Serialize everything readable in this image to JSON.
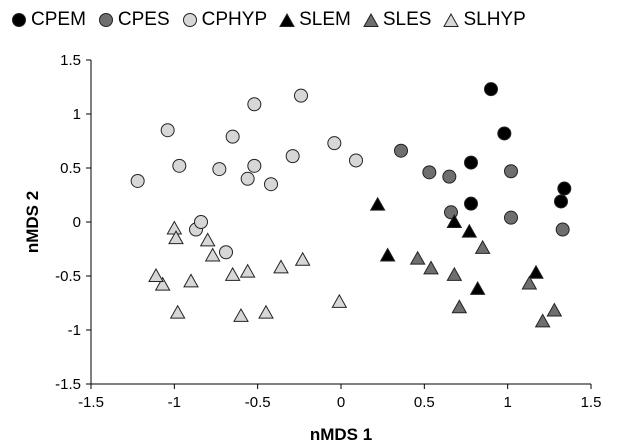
{
  "chart_data": {
    "type": "scatter",
    "title": "",
    "xlabel": "nMDS 1",
    "ylabel": "nMDS 2",
    "xlim": [
      -1.5,
      1.5
    ],
    "ylim": [
      -1.5,
      1.5
    ],
    "xticks": [
      -1.5,
      -1,
      -0.5,
      0,
      0.5,
      1,
      1.5
    ],
    "xtick_labels": [
      "-1.5",
      "-1",
      "-0.5",
      "0",
      "0.5",
      "1",
      "1.5"
    ],
    "yticks": [
      -1.5,
      -1,
      -0.5,
      0,
      0.5,
      1,
      1.5
    ],
    "ytick_labels": [
      "-1.5",
      "-1",
      "-0.5",
      "0",
      "0.5",
      "1",
      "1.5"
    ],
    "grid": false,
    "legend_position": "top",
    "series": [
      {
        "name": "CPEM",
        "marker": "circle",
        "color": "#000000",
        "points": [
          [
            0.9,
            1.23
          ],
          [
            0.98,
            0.82
          ],
          [
            0.78,
            0.55
          ],
          [
            1.34,
            0.31
          ],
          [
            1.32,
            0.19
          ],
          [
            0.78,
            0.17
          ]
        ]
      },
      {
        "name": "CPES",
        "marker": "circle",
        "color": "#6e6e6e",
        "points": [
          [
            0.36,
            0.66
          ],
          [
            0.53,
            0.46
          ],
          [
            0.65,
            0.42
          ],
          [
            1.02,
            0.47
          ],
          [
            0.66,
            0.09
          ],
          [
            1.02,
            0.04
          ],
          [
            1.33,
            -0.07
          ]
        ]
      },
      {
        "name": "CPHYP",
        "marker": "circle",
        "color": "#d7d7d7",
        "points": [
          [
            -1.22,
            0.38
          ],
          [
            -1.04,
            0.85
          ],
          [
            -0.97,
            0.52
          ],
          [
            -0.65,
            0.79
          ],
          [
            -0.73,
            0.49
          ],
          [
            -0.52,
            1.09
          ],
          [
            -0.52,
            0.52
          ],
          [
            -0.56,
            0.4
          ],
          [
            -0.42,
            0.35
          ],
          [
            -0.29,
            0.61
          ],
          [
            -0.24,
            1.17
          ],
          [
            -0.04,
            0.73
          ],
          [
            0.09,
            0.57
          ],
          [
            -0.87,
            -0.07
          ],
          [
            -0.84,
            0.0
          ],
          [
            -0.69,
            -0.28
          ]
        ]
      },
      {
        "name": "SLEM",
        "marker": "triangle",
        "color": "#000000",
        "points": [
          [
            0.22,
            0.16
          ],
          [
            0.68,
            0.0
          ],
          [
            0.77,
            -0.09
          ],
          [
            0.28,
            -0.31
          ],
          [
            0.82,
            -0.62
          ],
          [
            1.17,
            -0.47
          ]
        ]
      },
      {
        "name": "SLES",
        "marker": "triangle",
        "color": "#6e6e6e",
        "points": [
          [
            0.46,
            -0.34
          ],
          [
            0.54,
            -0.43
          ],
          [
            0.68,
            -0.49
          ],
          [
            0.71,
            -0.79
          ],
          [
            0.85,
            -0.24
          ],
          [
            1.13,
            -0.57
          ],
          [
            1.21,
            -0.92
          ],
          [
            1.28,
            -0.82
          ]
        ]
      },
      {
        "name": "SLHYP",
        "marker": "triangle",
        "color": "#d7d7d7",
        "points": [
          [
            -1.0,
            -0.06
          ],
          [
            -0.99,
            -0.15
          ],
          [
            -0.8,
            -0.17
          ],
          [
            -0.77,
            -0.31
          ],
          [
            -0.9,
            -0.55
          ],
          [
            -1.07,
            -0.58
          ],
          [
            -1.11,
            -0.5
          ],
          [
            -0.98,
            -0.84
          ],
          [
            -0.65,
            -0.49
          ],
          [
            -0.56,
            -0.46
          ],
          [
            -0.36,
            -0.42
          ],
          [
            -0.23,
            -0.35
          ],
          [
            -0.6,
            -0.87
          ],
          [
            -0.45,
            -0.84
          ],
          [
            -0.01,
            -0.74
          ]
        ]
      }
    ]
  }
}
